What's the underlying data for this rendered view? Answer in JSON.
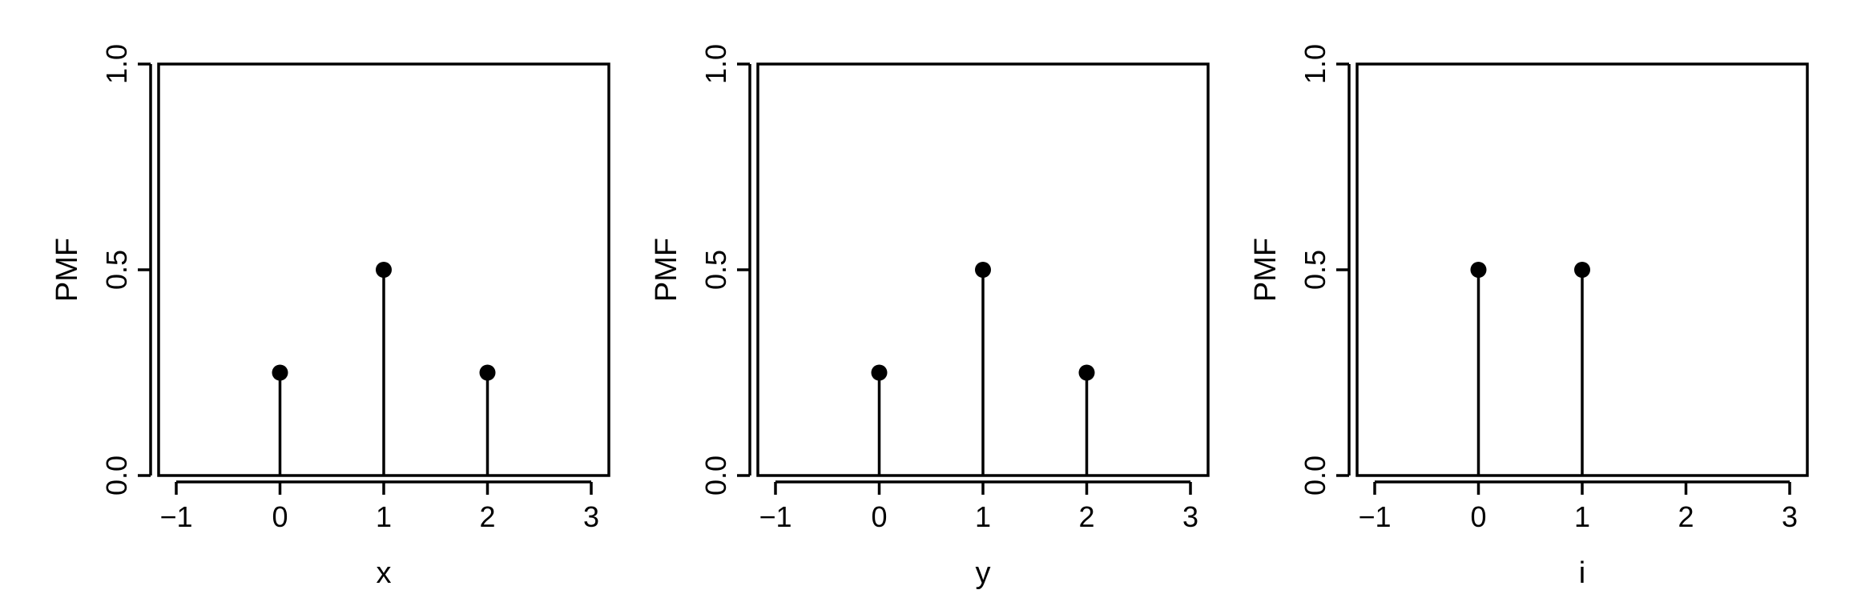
{
  "chart_data": [
    {
      "type": "scatter",
      "style": "stem",
      "xlabel": "x",
      "ylabel": "PMF",
      "xlim": [
        -1,
        3
      ],
      "ylim": [
        0,
        1
      ],
      "xticks": [
        -1,
        0,
        1,
        2,
        3
      ],
      "yticks": [
        0.0,
        0.5,
        1.0
      ],
      "xtick_labels": [
        "−1",
        "0",
        "1",
        "2",
        "3"
      ],
      "ytick_labels": [
        "0.0",
        "0.5",
        "1.0"
      ],
      "x": [
        0,
        1,
        2
      ],
      "y": [
        0.25,
        0.5,
        0.25
      ],
      "grid": false,
      "color": "#000000"
    },
    {
      "type": "scatter",
      "style": "stem",
      "xlabel": "y",
      "ylabel": "PMF",
      "xlim": [
        -1,
        3
      ],
      "ylim": [
        0,
        1
      ],
      "xticks": [
        -1,
        0,
        1,
        2,
        3
      ],
      "yticks": [
        0.0,
        0.5,
        1.0
      ],
      "xtick_labels": [
        "−1",
        "0",
        "1",
        "2",
        "3"
      ],
      "ytick_labels": [
        "0.0",
        "0.5",
        "1.0"
      ],
      "x": [
        0,
        1,
        2
      ],
      "y": [
        0.25,
        0.5,
        0.25
      ],
      "grid": false,
      "color": "#000000"
    },
    {
      "type": "scatter",
      "style": "stem",
      "xlabel": "i",
      "ylabel": "PMF",
      "xlim": [
        -1,
        3
      ],
      "ylim": [
        0,
        1
      ],
      "xticks": [
        -1,
        0,
        1,
        2,
        3
      ],
      "yticks": [
        0.0,
        0.5,
        1.0
      ],
      "xtick_labels": [
        "−1",
        "0",
        "1",
        "2",
        "3"
      ],
      "ytick_labels": [
        "0.0",
        "0.5",
        "1.0"
      ],
      "x": [
        0,
        1
      ],
      "y": [
        0.5,
        0.5
      ],
      "grid": false,
      "color": "#000000"
    }
  ]
}
